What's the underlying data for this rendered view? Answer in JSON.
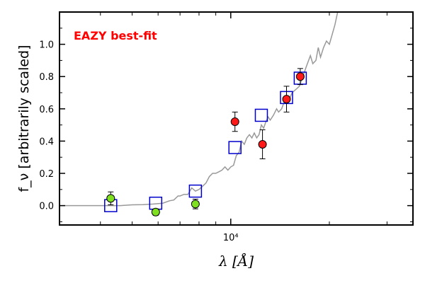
{
  "chart_data": {
    "type": "scatter",
    "title": "",
    "xlabel": "λ [Å]",
    "ylabel": "f_ν [arbitrarily scaled]",
    "xscale": "log",
    "xlim": [
      3000,
      36000
    ],
    "ylim": [
      -0.12,
      1.2
    ],
    "grid": false,
    "annotation": {
      "text": "EAZY best-fit",
      "color": "#ff0000",
      "placement": "top-left"
    },
    "x_ticks": [
      {
        "value": 10000,
        "label": "10⁴"
      }
    ],
    "y_ticks": [
      {
        "value": 0.0,
        "label": "0.0"
      },
      {
        "value": 0.2,
        "label": "0.2"
      },
      {
        "value": 0.4,
        "label": "0.4"
      },
      {
        "value": 0.6,
        "label": "0.6"
      },
      {
        "value": 0.8,
        "label": "0.8"
      },
      {
        "value": 1.0,
        "label": "1.0"
      }
    ],
    "template": {
      "color": "#999999",
      "points": [
        [
          3000,
          0.0
        ],
        [
          3400,
          0.0
        ],
        [
          3800,
          0.0
        ],
        [
          4200,
          0.0
        ],
        [
          4600,
          0.0
        ],
        [
          5000,
          0.005
        ],
        [
          5400,
          0.006
        ],
        [
          5800,
          0.01
        ],
        [
          6200,
          0.015
        ],
        [
          6500,
          0.03
        ],
        [
          6700,
          0.035
        ],
        [
          6900,
          0.06
        ],
        [
          7000,
          0.06
        ],
        [
          7200,
          0.07
        ],
        [
          7400,
          0.07
        ],
        [
          7600,
          0.11
        ],
        [
          7800,
          0.09
        ],
        [
          8000,
          0.1
        ],
        [
          8200,
          0.12
        ],
        [
          8400,
          0.14
        ],
        [
          8600,
          0.18
        ],
        [
          8800,
          0.2
        ],
        [
          9000,
          0.2
        ],
        [
          9200,
          0.21
        ],
        [
          9400,
          0.22
        ],
        [
          9600,
          0.24
        ],
        [
          9800,
          0.22
        ],
        [
          10000,
          0.24
        ],
        [
          10200,
          0.25
        ],
        [
          10400,
          0.31
        ],
        [
          10600,
          0.33
        ],
        [
          10800,
          0.4
        ],
        [
          11000,
          0.38
        ],
        [
          11200,
          0.42
        ],
        [
          11400,
          0.44
        ],
        [
          11600,
          0.42
        ],
        [
          11800,
          0.45
        ],
        [
          12000,
          0.42
        ],
        [
          12200,
          0.44
        ],
        [
          12400,
          0.5
        ],
        [
          12600,
          0.48
        ],
        [
          12800,
          0.52
        ],
        [
          13000,
          0.55
        ],
        [
          13200,
          0.53
        ],
        [
          13500,
          0.56
        ],
        [
          13800,
          0.6
        ],
        [
          14000,
          0.58
        ],
        [
          14300,
          0.6
        ],
        [
          14600,
          0.65
        ],
        [
          15000,
          0.65
        ],
        [
          15400,
          0.7
        ],
        [
          15800,
          0.72
        ],
        [
          16200,
          0.74
        ],
        [
          16600,
          0.8
        ],
        [
          17000,
          0.86
        ],
        [
          17500,
          0.93
        ],
        [
          17800,
          0.88
        ],
        [
          18200,
          0.9
        ],
        [
          18500,
          0.98
        ],
        [
          18800,
          0.92
        ],
        [
          19200,
          0.98
        ],
        [
          19600,
          1.02
        ],
        [
          20000,
          1.0
        ],
        [
          20400,
          1.06
        ],
        [
          20800,
          1.12
        ],
        [
          21200,
          1.2
        ]
      ]
    },
    "series": [
      {
        "name": "",
        "marker": "open-square",
        "color": "#0000cc",
        "points": [
          {
            "x": 4300,
            "y": 0.0
          },
          {
            "x": 5900,
            "y": 0.015
          },
          {
            "x": 7800,
            "y": 0.09
          },
          {
            "x": 10300,
            "y": 0.36
          },
          {
            "x": 12400,
            "y": 0.56
          },
          {
            "x": 14800,
            "y": 0.67
          },
          {
            "x": 16300,
            "y": 0.79
          }
        ]
      },
      {
        "name": "",
        "marker": "filled-circle",
        "color": "#7fe020",
        "points": [
          {
            "x": 4300,
            "y": 0.045,
            "err": 0.04
          },
          {
            "x": 5900,
            "y": -0.04,
            "err": 0.02
          },
          {
            "x": 7800,
            "y": 0.01,
            "err": 0.03
          }
        ]
      },
      {
        "name": "",
        "marker": "filled-circle",
        "color": "#ff1a1a",
        "points": [
          {
            "x": 10300,
            "y": 0.52,
            "err": 0.06
          },
          {
            "x": 12500,
            "y": 0.38,
            "err": 0.09
          },
          {
            "x": 14800,
            "y": 0.66,
            "err": 0.08
          },
          {
            "x": 16300,
            "y": 0.8,
            "err": 0.05
          }
        ]
      }
    ]
  }
}
